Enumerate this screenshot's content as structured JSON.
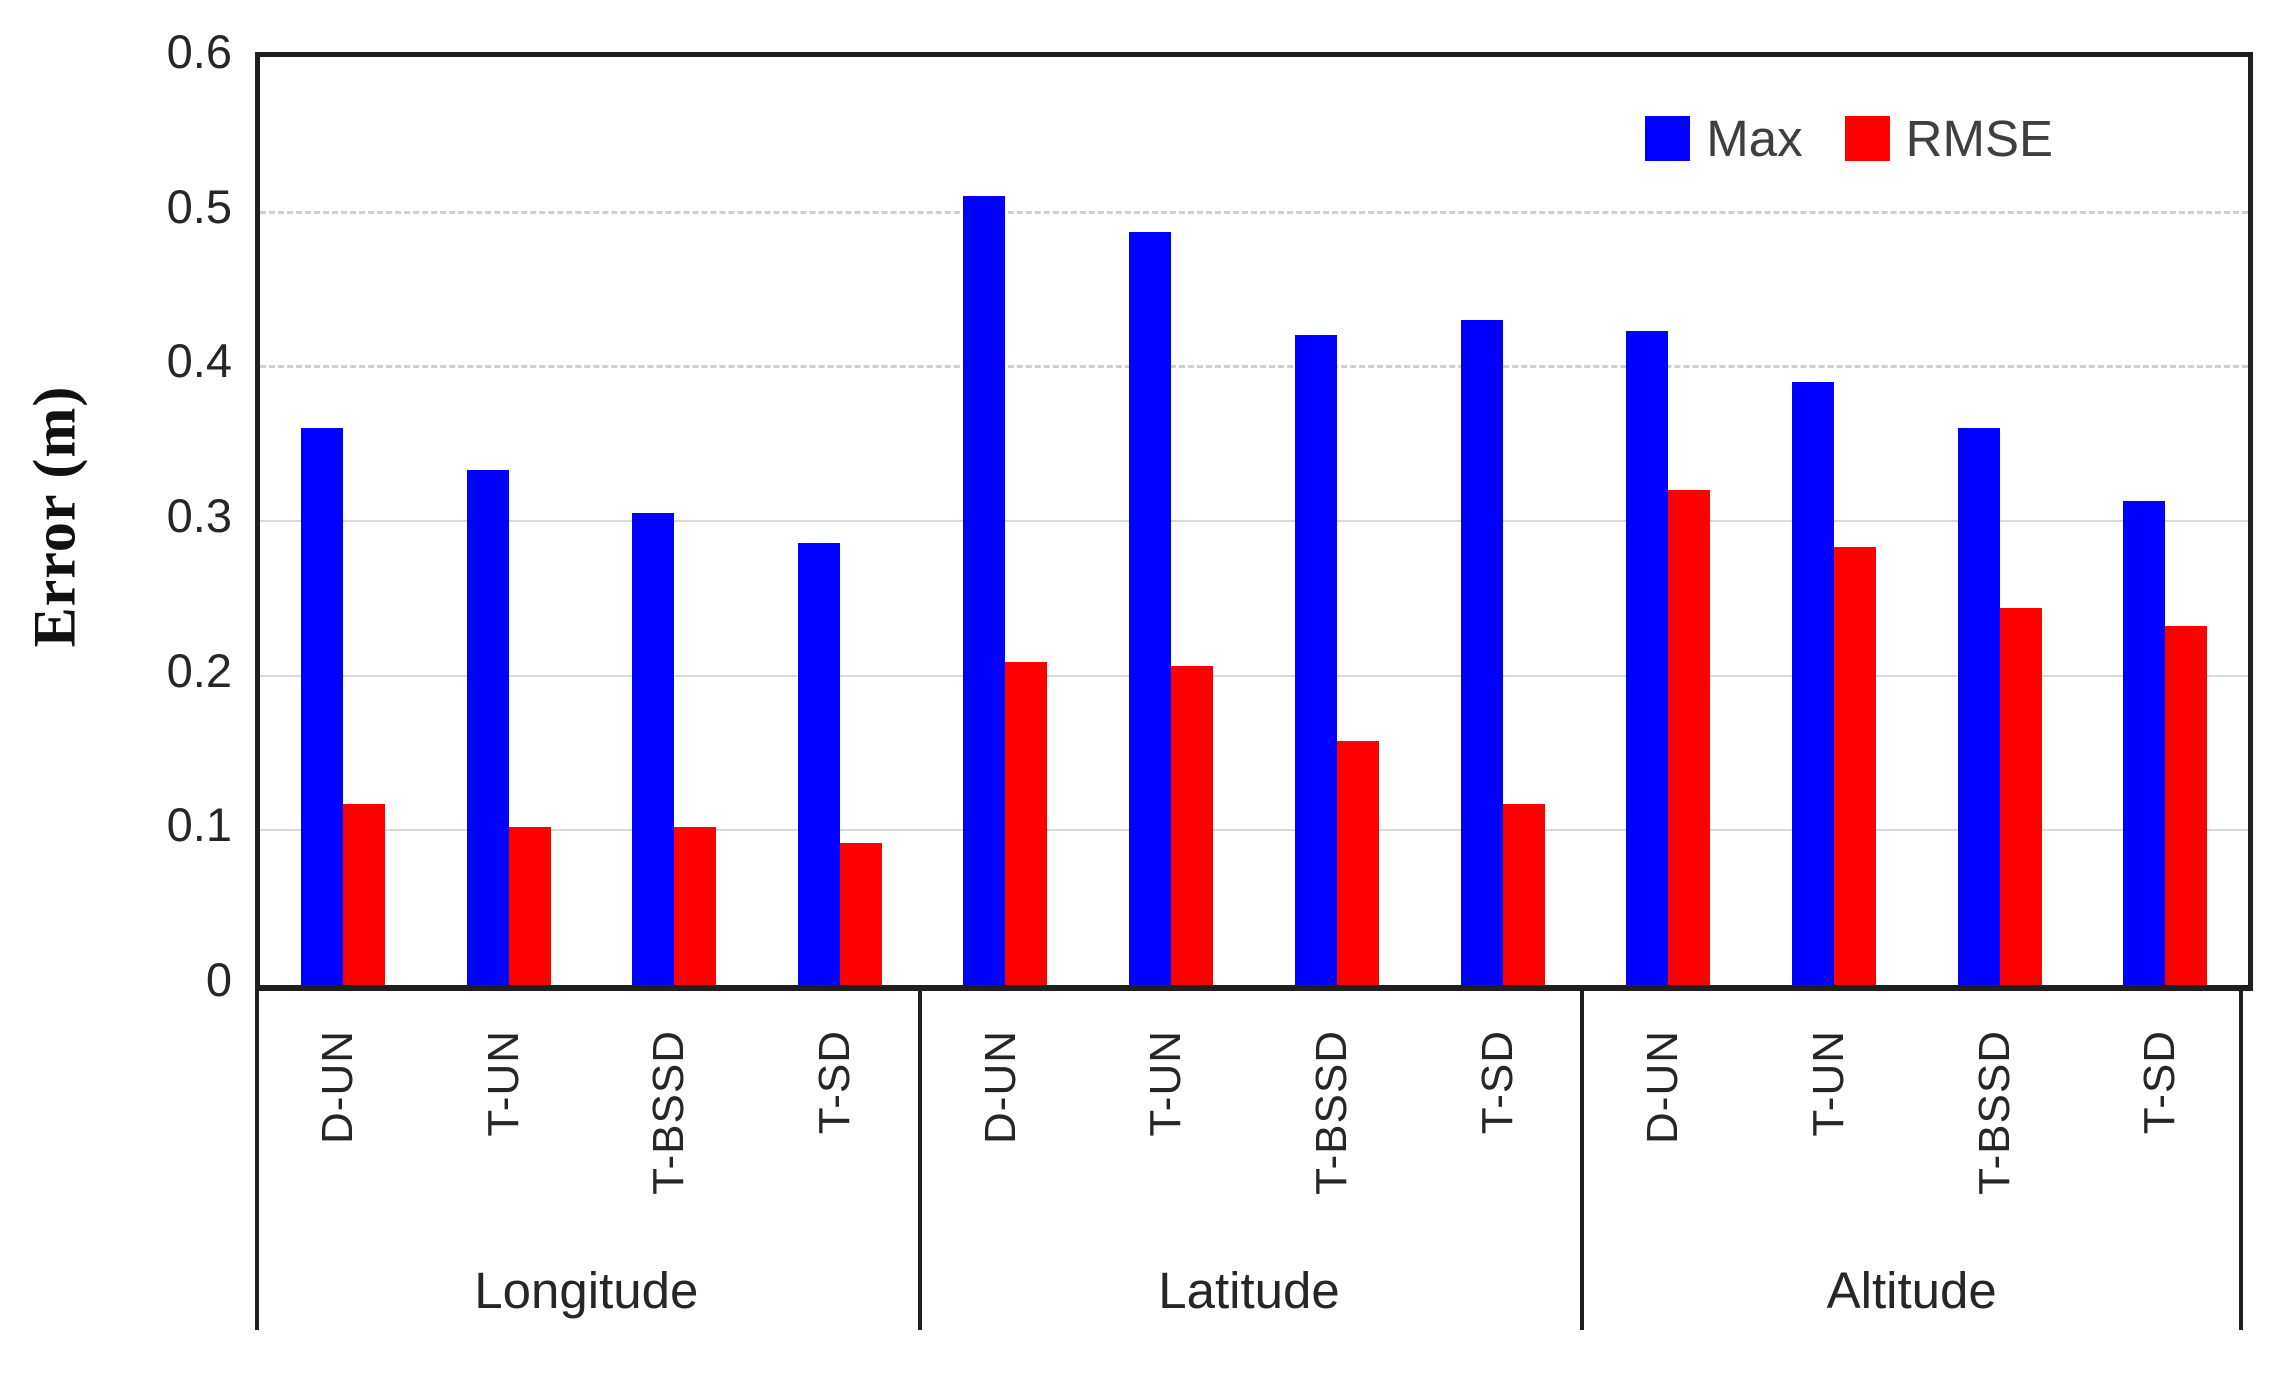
{
  "chart_data": {
    "type": "bar",
    "title": "",
    "ylabel": "Error (m)",
    "xlabel": "",
    "ylim": [
      0,
      0.6
    ],
    "ytick_labels": [
      "0",
      "0.1",
      "0.2",
      "0.3",
      "0.4",
      "0.5",
      "0.6"
    ],
    "grid": true,
    "legend_position": "top-right-inside",
    "groups": [
      "Longitude",
      "Latitude",
      "Altitude"
    ],
    "categories": [
      "D-UN",
      "T-UN",
      "T-BSSD",
      "T-SD"
    ],
    "series": [
      {
        "name": "Max",
        "color": "#0000fe",
        "values": [
          [
            0.36,
            0.333,
            0.305,
            0.286
          ],
          [
            0.51,
            0.487,
            0.42,
            0.43
          ],
          [
            0.423,
            0.39,
            0.36,
            0.313
          ]
        ]
      },
      {
        "name": "RMSE",
        "color": "#fe0000",
        "values": [
          [
            0.117,
            0.102,
            0.102,
            0.092
          ],
          [
            0.209,
            0.206,
            0.158,
            0.117
          ],
          [
            0.32,
            0.283,
            0.244,
            0.232
          ]
        ]
      }
    ]
  },
  "colors": {
    "axis": "#1f1f1f",
    "gridline": "#d9d9d9",
    "tick_text": "#262626",
    "legend_text": "#3f3f3f",
    "background": "#ffffff"
  }
}
